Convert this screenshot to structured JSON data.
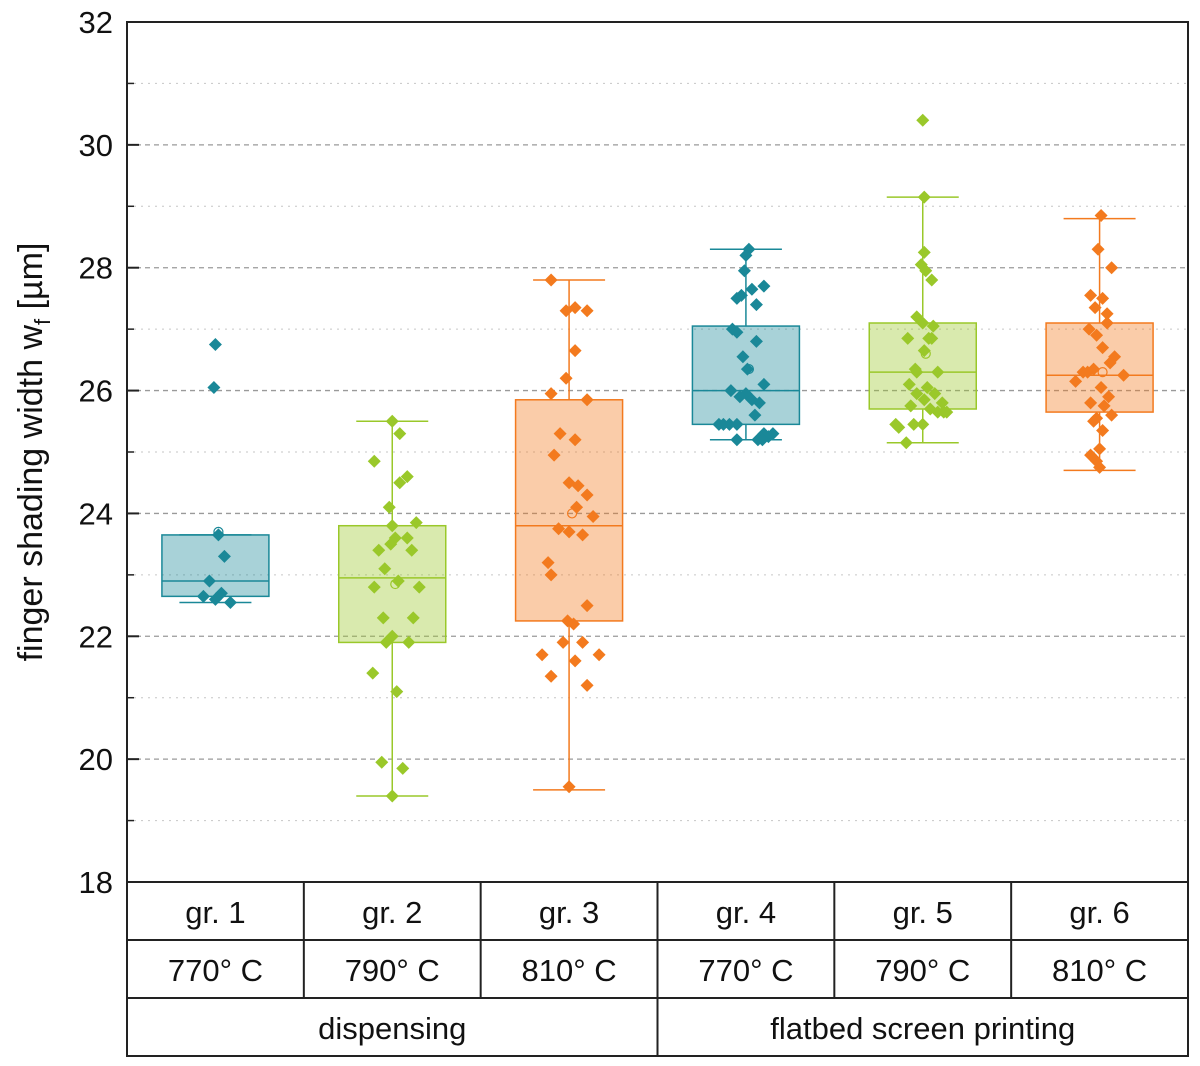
{
  "chart_data": {
    "type": "box",
    "ylabel": "finger shading width w",
    "ylabel_sub": "f",
    "ylabel_unit": " [µm]",
    "ylim": [
      18,
      32
    ],
    "yticks": [
      "18",
      "20",
      "22",
      "24",
      "26",
      "28",
      "30",
      "32"
    ],
    "grid": "horizontal dashed",
    "colors": {
      "teal": "#1a8898",
      "green": "#9ac82a",
      "orange": "#f37a1e"
    },
    "groups": [
      {
        "name": "gr. 1",
        "temperature": "770° C",
        "process": "dispensing",
        "color": "teal",
        "whisker_low": 22.55,
        "q1": 22.65,
        "median": 22.9,
        "q3": 23.65,
        "whisker_high": 23.65,
        "mean": 23.7,
        "points": [
          [
            0.0,
            26.75
          ],
          [
            -0.05,
            26.05
          ],
          [
            0.1,
            23.65
          ],
          [
            0.3,
            23.3
          ],
          [
            -0.4,
            22.65
          ],
          [
            -0.2,
            22.9
          ],
          [
            0.0,
            22.6
          ],
          [
            0.5,
            22.55
          ],
          [
            0.2,
            22.7
          ]
        ]
      },
      {
        "name": "gr. 2",
        "temperature": "790° C",
        "process": "dispensing",
        "color": "green",
        "whisker_low": 19.4,
        "q1": 21.9,
        "median": 22.95,
        "q3": 23.8,
        "whisker_high": 25.5,
        "mean": 22.85,
        "points": [
          [
            0.0,
            25.5
          ],
          [
            0.25,
            25.3
          ],
          [
            -0.6,
            24.85
          ],
          [
            0.25,
            24.5
          ],
          [
            0.5,
            24.6
          ],
          [
            -0.1,
            24.1
          ],
          [
            0.0,
            23.8
          ],
          [
            0.1,
            23.6
          ],
          [
            0.5,
            23.6
          ],
          [
            0.65,
            23.4
          ],
          [
            -0.45,
            23.4
          ],
          [
            -0.25,
            23.1
          ],
          [
            -0.05,
            23.5
          ],
          [
            0.8,
            23.85
          ],
          [
            0.2,
            22.9
          ],
          [
            0.9,
            22.8
          ],
          [
            -0.6,
            22.8
          ],
          [
            -0.3,
            22.3
          ],
          [
            0.7,
            22.3
          ],
          [
            0.0,
            22.0
          ],
          [
            -0.2,
            21.9
          ],
          [
            0.55,
            21.9
          ],
          [
            -0.65,
            21.4
          ],
          [
            0.15,
            21.1
          ],
          [
            -0.35,
            19.95
          ],
          [
            0.35,
            19.85
          ],
          [
            0.0,
            19.4
          ]
        ]
      },
      {
        "name": "gr. 3",
        "temperature": "810° C",
        "process": "dispensing",
        "color": "orange",
        "whisker_low": 19.5,
        "q1": 22.25,
        "median": 23.8,
        "q3": 25.85,
        "whisker_high": 27.8,
        "mean": 24.0,
        "points": [
          [
            -0.6,
            27.8
          ],
          [
            -0.1,
            27.3
          ],
          [
            0.2,
            27.35
          ],
          [
            0.6,
            27.3
          ],
          [
            0.2,
            26.65
          ],
          [
            -0.1,
            26.2
          ],
          [
            -0.6,
            25.95
          ],
          [
            0.6,
            25.85
          ],
          [
            -0.3,
            25.3
          ],
          [
            0.2,
            25.2
          ],
          [
            -0.5,
            24.95
          ],
          [
            0.0,
            24.5
          ],
          [
            0.3,
            24.45
          ],
          [
            0.6,
            24.3
          ],
          [
            0.25,
            24.1
          ],
          [
            0.8,
            23.95
          ],
          [
            -0.35,
            23.75
          ],
          [
            0.0,
            23.7
          ],
          [
            0.45,
            23.65
          ],
          [
            -0.7,
            23.2
          ],
          [
            -0.6,
            23.0
          ],
          [
            0.6,
            22.5
          ],
          [
            -0.05,
            22.25
          ],
          [
            0.15,
            22.2
          ],
          [
            -0.2,
            21.9
          ],
          [
            0.45,
            21.9
          ],
          [
            -0.9,
            21.7
          ],
          [
            1.0,
            21.7
          ],
          [
            0.2,
            21.6
          ],
          [
            -0.6,
            21.35
          ],
          [
            0.6,
            21.2
          ],
          [
            0.0,
            19.55
          ]
        ]
      },
      {
        "name": "gr. 4",
        "temperature": "770° C",
        "process": "flatbed screen printing",
        "color": "teal",
        "whisker_low": 25.2,
        "q1": 25.45,
        "median": 26.0,
        "q3": 27.05,
        "whisker_high": 28.3,
        "mean": 26.35,
        "points": [
          [
            0.1,
            28.3
          ],
          [
            0.0,
            28.2
          ],
          [
            -0.05,
            27.95
          ],
          [
            0.2,
            27.65
          ],
          [
            0.6,
            27.7
          ],
          [
            -0.3,
            27.5
          ],
          [
            -0.15,
            27.55
          ],
          [
            0.35,
            27.4
          ],
          [
            -0.45,
            27.0
          ],
          [
            -0.3,
            26.95
          ],
          [
            0.35,
            26.8
          ],
          [
            -0.1,
            26.55
          ],
          [
            0.05,
            26.35
          ],
          [
            0.6,
            26.1
          ],
          [
            -0.5,
            26.0
          ],
          [
            0.0,
            25.95
          ],
          [
            0.2,
            25.85
          ],
          [
            -0.2,
            25.9
          ],
          [
            0.45,
            25.8
          ],
          [
            0.3,
            25.6
          ],
          [
            -0.3,
            25.45
          ],
          [
            -0.9,
            25.45
          ],
          [
            -0.75,
            25.45
          ],
          [
            -0.55,
            25.45
          ],
          [
            0.6,
            25.3
          ],
          [
            0.75,
            25.25
          ],
          [
            0.9,
            25.3
          ],
          [
            -0.3,
            25.2
          ],
          [
            0.4,
            25.2
          ],
          [
            0.55,
            25.2
          ]
        ]
      },
      {
        "name": "gr. 5",
        "temperature": "790° C",
        "process": "flatbed screen printing",
        "color": "green",
        "whisker_low": 25.15,
        "q1": 25.7,
        "median": 26.3,
        "q3": 27.1,
        "whisker_high": 29.15,
        "mean": 26.6,
        "points": [
          [
            0.0,
            30.4
          ],
          [
            0.05,
            29.15
          ],
          [
            0.05,
            28.25
          ],
          [
            -0.05,
            28.05
          ],
          [
            0.1,
            27.95
          ],
          [
            0.3,
            27.8
          ],
          [
            -0.2,
            27.2
          ],
          [
            0.0,
            27.1
          ],
          [
            0.35,
            27.05
          ],
          [
            -0.5,
            26.85
          ],
          [
            0.2,
            26.85
          ],
          [
            0.3,
            26.85
          ],
          [
            0.05,
            26.65
          ],
          [
            -0.25,
            26.35
          ],
          [
            -0.2,
            26.3
          ],
          [
            0.5,
            26.3
          ],
          [
            -0.45,
            26.1
          ],
          [
            0.15,
            26.05
          ],
          [
            0.4,
            25.95
          ],
          [
            -0.2,
            25.95
          ],
          [
            0.05,
            25.85
          ],
          [
            -0.4,
            25.75
          ],
          [
            0.65,
            25.8
          ],
          [
            0.5,
            25.65
          ],
          [
            0.7,
            25.65
          ],
          [
            0.25,
            25.7
          ],
          [
            0.8,
            25.65
          ],
          [
            -0.9,
            25.45
          ],
          [
            -0.8,
            25.4
          ],
          [
            0.0,
            25.45
          ],
          [
            -0.3,
            25.45
          ],
          [
            -0.55,
            25.15
          ]
        ]
      },
      {
        "name": "gr. 6",
        "temperature": "810° C",
        "process": "flatbed screen printing",
        "color": "orange",
        "whisker_low": 24.7,
        "q1": 25.65,
        "median": 26.25,
        "q3": 27.1,
        "whisker_high": 28.8,
        "mean": 26.3,
        "points": [
          [
            0.05,
            28.85
          ],
          [
            -0.05,
            28.3
          ],
          [
            0.4,
            28.0
          ],
          [
            -0.3,
            27.55
          ],
          [
            0.1,
            27.5
          ],
          [
            -0.15,
            27.35
          ],
          [
            0.25,
            27.25
          ],
          [
            -0.35,
            27.0
          ],
          [
            0.25,
            27.1
          ],
          [
            -0.1,
            26.9
          ],
          [
            0.1,
            26.7
          ],
          [
            0.5,
            26.55
          ],
          [
            0.8,
            26.25
          ],
          [
            -0.8,
            26.15
          ],
          [
            -0.55,
            26.3
          ],
          [
            -0.4,
            26.3
          ],
          [
            0.35,
            26.45
          ],
          [
            -0.2,
            26.35
          ],
          [
            0.05,
            26.05
          ],
          [
            0.3,
            25.9
          ],
          [
            -0.3,
            25.8
          ],
          [
            0.15,
            25.75
          ],
          [
            -0.1,
            25.55
          ],
          [
            0.4,
            25.6
          ],
          [
            -0.2,
            25.5
          ],
          [
            0.1,
            25.35
          ],
          [
            -0.3,
            24.95
          ],
          [
            0.0,
            25.05
          ],
          [
            -0.1,
            24.85
          ],
          [
            0.0,
            24.75
          ]
        ]
      }
    ],
    "process_groups": [
      {
        "label": "dispensing",
        "span": [
          1,
          3
        ]
      },
      {
        "label": "flatbed screen printing",
        "span": [
          4,
          6
        ]
      }
    ]
  }
}
